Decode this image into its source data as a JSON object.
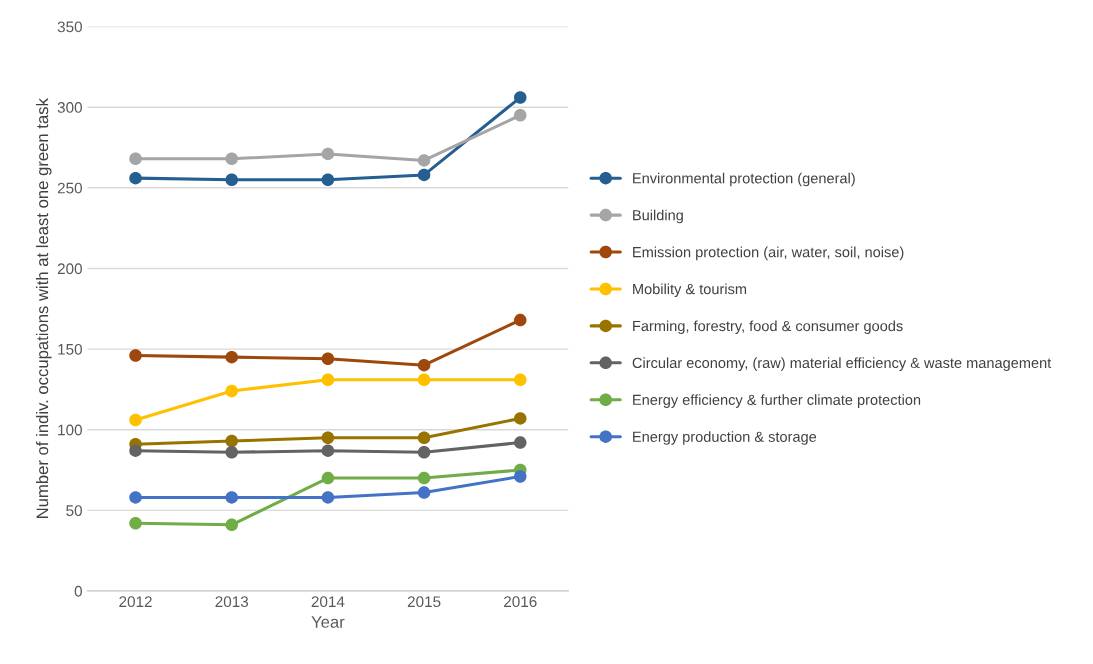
{
  "chart_data": {
    "type": "line",
    "xlabel": "Year",
    "ylabel": "Number of indiv. occupations with at least one green task",
    "categories": [
      "2012",
      "2013",
      "2014",
      "2015",
      "2016"
    ],
    "series": [
      {
        "name": "Environmental protection (general)",
        "color": "#255e91",
        "values": [
          256,
          255,
          255,
          258,
          306
        ]
      },
      {
        "name": "Building",
        "color": "#a5a5a5",
        "values": [
          268,
          268,
          271,
          267,
          295
        ]
      },
      {
        "name": "Emission protection (air, water, soil, noise)",
        "color": "#9e480e",
        "values": [
          146,
          145,
          144,
          140,
          168
        ]
      },
      {
        "name": "Mobility & tourism",
        "color": "#ffc000",
        "values": [
          106,
          124,
          131,
          131,
          131
        ]
      },
      {
        "name": "Farming, forestry, food & consumer goods",
        "color": "#997300",
        "values": [
          91,
          93,
          95,
          95,
          107
        ]
      },
      {
        "name": "Circular economy, (raw) material efficiency & waste management",
        "color": "#636363",
        "values": [
          87,
          86,
          87,
          86,
          92
        ]
      },
      {
        "name": "Energy efficiency & further climate protection",
        "color": "#70ad47",
        "values": [
          42,
          41,
          70,
          70,
          75
        ]
      },
      {
        "name": "Energy production & storage",
        "color": "#4472c4",
        "values": [
          58,
          58,
          58,
          61,
          71
        ]
      }
    ],
    "ylim": [
      0,
      350
    ],
    "yticks": [
      0,
      50,
      100,
      150,
      200,
      250,
      300,
      350
    ],
    "grid": "y",
    "legend": "right",
    "marker": "circle",
    "line_style": "solid"
  }
}
